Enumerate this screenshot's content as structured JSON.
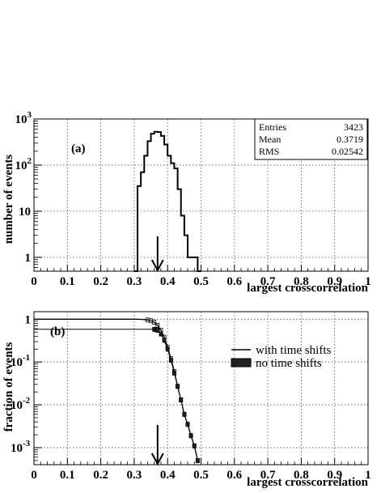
{
  "chart_data": [
    {
      "type": "histogram",
      "panel_label": "(a)",
      "xlabel": "largest crosscorrelation",
      "ylabel": "number of events",
      "xlim": [
        0,
        1
      ],
      "ylim": [
        0.5,
        1000
      ],
      "yscale": "log",
      "grid": true,
      "x_ticks": [
        "0",
        "0.1",
        "0.2",
        "0.3",
        "0.4",
        "0.5",
        "0.6",
        "0.7",
        "0.8",
        "0.9",
        "1"
      ],
      "y_ticks": [
        {
          "value": 1,
          "base": "1",
          "exp": ""
        },
        {
          "value": 10,
          "base": "10",
          "exp": ""
        },
        {
          "value": 100,
          "base": "10",
          "exp": "2"
        },
        {
          "value": 1000,
          "base": "10",
          "exp": "3"
        }
      ],
      "stats": {
        "entries_label": "Entries",
        "entries": "3423",
        "mean_label": "Mean",
        "mean": "0.3719",
        "rms_label": "RMS",
        "rms": "0.02542"
      },
      "marker_x": 0.37,
      "bins": {
        "x": [
          0.305,
          0.315,
          0.325,
          0.335,
          0.345,
          0.355,
          0.365,
          0.375,
          0.385,
          0.395,
          0.405,
          0.415,
          0.425,
          0.435,
          0.445,
          0.455,
          0.465,
          0.475,
          0.485,
          0.495
        ],
        "values": [
          0.5,
          35,
          70,
          160,
          330,
          480,
          530,
          520,
          430,
          280,
          160,
          110,
          85,
          30,
          8,
          3,
          1,
          1,
          1,
          0.5
        ]
      }
    },
    {
      "type": "line",
      "panel_label": "(b)",
      "xlabel": "largest crosscorrelation",
      "ylabel": "fraction of events",
      "xlim": [
        0,
        1
      ],
      "ylim": [
        0.0004,
        1.5
      ],
      "yscale": "log",
      "grid": true,
      "x_ticks": [
        "0",
        "0.1",
        "0.2",
        "0.3",
        "0.4",
        "0.5",
        "0.6",
        "0.7",
        "0.8",
        "0.9",
        "1"
      ],
      "y_ticks": [
        {
          "value": 1,
          "base": "1",
          "exp": ""
        },
        {
          "value": 0.1,
          "base": "10",
          "exp": "-1"
        },
        {
          "value": 0.01,
          "base": "10",
          "exp": "-2"
        },
        {
          "value": 0.001,
          "base": "10",
          "exp": "-3"
        }
      ],
      "legend": {
        "position": "middle-right",
        "entries": [
          "with time shifts",
          "no time shifts"
        ]
      },
      "marker_x": 0.37,
      "series": [
        {
          "name": "with time shifts",
          "x": [
            0.0,
            0.3,
            0.32,
            0.34,
            0.35,
            0.36,
            0.37,
            0.38,
            0.39,
            0.4,
            0.41,
            0.42,
            0.43,
            0.44,
            0.45,
            0.46,
            0.47,
            0.48,
            0.49
          ],
          "values": [
            1.0,
            1.0,
            0.99,
            0.96,
            0.92,
            0.85,
            0.72,
            0.55,
            0.38,
            0.22,
            0.12,
            0.06,
            0.027,
            0.013,
            0.006,
            0.0035,
            0.0019,
            0.0011,
            0.0005
          ]
        },
        {
          "name": "no time shifts",
          "x": [
            0.0,
            0.36,
            0.365,
            0.37,
            0.38,
            0.39,
            0.4,
            0.41,
            0.42,
            0.43,
            0.44,
            0.45,
            0.46,
            0.47,
            0.48,
            0.49
          ],
          "values": [
            0.58,
            0.58,
            0.57,
            0.55,
            0.45,
            0.32,
            0.2,
            0.11,
            0.055,
            0.027,
            0.013,
            0.006,
            0.0035,
            0.0019,
            0.0011,
            0.0005
          ]
        }
      ]
    }
  ]
}
